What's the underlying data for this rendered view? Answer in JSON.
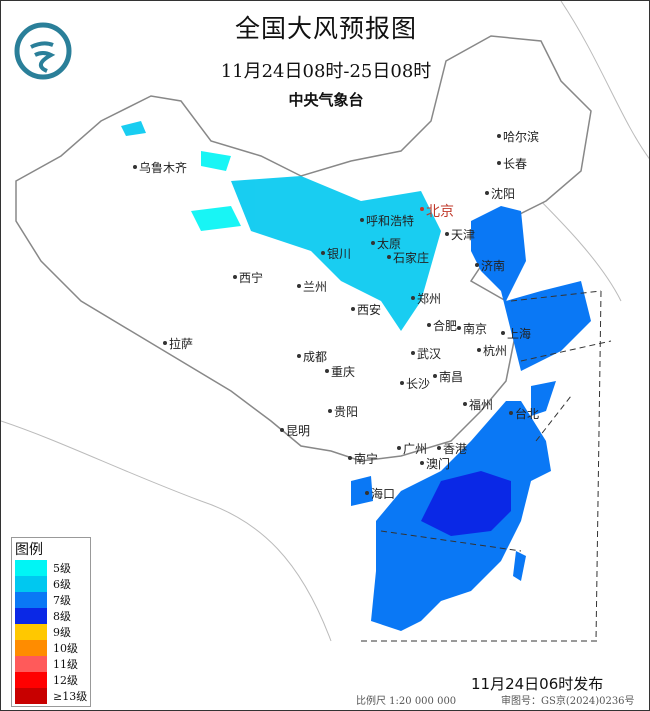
{
  "header": {
    "title": "全国大风预报图",
    "period": "11月24日08时-25日08时",
    "agency": "中央气象台"
  },
  "legend": {
    "title": "图例",
    "items": [
      {
        "label": "5级",
        "color": "#00f5f5"
      },
      {
        "label": "6级",
        "color": "#00c8f0"
      },
      {
        "label": "7级",
        "color": "#0a78f5"
      },
      {
        "label": "8级",
        "color": "#0a28e6"
      },
      {
        "label": "9级",
        "color": "#ffc800"
      },
      {
        "label": "10级",
        "color": "#ff8c00"
      },
      {
        "label": "11级",
        "color": "#ff5a5a"
      },
      {
        "label": "12级",
        "color": "#ff0000"
      },
      {
        "label": "≥13级",
        "color": "#c80000"
      }
    ]
  },
  "cities": [
    "乌鲁木齐",
    "哈尔滨",
    "长春",
    "沈阳",
    "北京",
    "天津",
    "呼和浩特",
    "银川",
    "太原",
    "石家庄",
    "济南",
    "西宁",
    "兰州",
    "郑州",
    "西安",
    "合肥",
    "南京",
    "上海",
    "拉萨",
    "成都",
    "武汉",
    "杭州",
    "重庆",
    "长沙",
    "南昌",
    "贵阳",
    "福州",
    "台北",
    "昆明",
    "广州",
    "香港",
    "澳门",
    "南宁",
    "海口"
  ],
  "footer": {
    "issued": "11月24日06时发布",
    "scale": "比例尺 1:20 000 000",
    "audit": "审图号：GS京(2024)0236号"
  }
}
